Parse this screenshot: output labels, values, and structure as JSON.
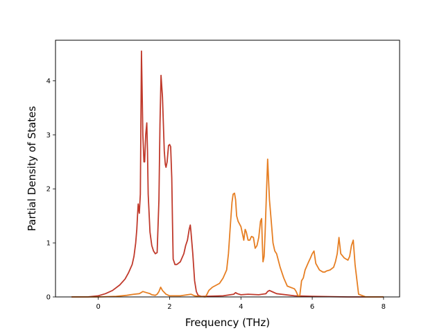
{
  "chart_data": {
    "type": "line",
    "title": "",
    "xlabel": "Frequency (THz)",
    "ylabel": "Partial Density of States",
    "xlim": [
      -1.2,
      8.45
    ],
    "ylim": [
      0,
      4.75
    ],
    "xticks": [
      0,
      2,
      4,
      6,
      8
    ],
    "yticks": [
      0,
      1,
      2,
      3,
      4
    ],
    "grid": false,
    "legend": "none",
    "series": [
      {
        "color": "#c0392b",
        "x": [
          -0.75,
          -0.3,
          0.0,
          0.2,
          0.4,
          0.6,
          0.75,
          0.85,
          0.95,
          1.0,
          1.05,
          1.08,
          1.1,
          1.12,
          1.15,
          1.18,
          1.21,
          1.23,
          1.25,
          1.28,
          1.3,
          1.33,
          1.36,
          1.38,
          1.4,
          1.45,
          1.5,
          1.55,
          1.6,
          1.65,
          1.7,
          1.73,
          1.76,
          1.8,
          1.85,
          1.88,
          1.9,
          1.93,
          1.97,
          2.0,
          2.03,
          2.06,
          2.08,
          2.1,
          2.15,
          2.2,
          2.3,
          2.4,
          2.45,
          2.5,
          2.55,
          2.58,
          2.6,
          2.65,
          2.7,
          2.75,
          2.8,
          2.9,
          3.0,
          3.5,
          3.8,
          3.85,
          3.9,
          4.0,
          4.2,
          4.5,
          4.7,
          4.75,
          4.8,
          4.9,
          5.0,
          5.5,
          6.0,
          7.0,
          8.0
        ],
        "y": [
          0.0,
          0.0,
          0.02,
          0.06,
          0.12,
          0.22,
          0.33,
          0.45,
          0.6,
          0.75,
          1.0,
          1.25,
          1.5,
          1.72,
          1.55,
          1.9,
          4.55,
          3.8,
          3.0,
          2.5,
          2.5,
          3.0,
          3.22,
          2.7,
          1.9,
          1.2,
          0.95,
          0.85,
          0.8,
          0.82,
          1.8,
          3.2,
          4.1,
          3.7,
          2.7,
          2.45,
          2.4,
          2.5,
          2.8,
          2.82,
          2.78,
          2.2,
          1.4,
          0.7,
          0.6,
          0.6,
          0.65,
          0.8,
          0.95,
          1.05,
          1.25,
          1.33,
          1.2,
          0.8,
          0.3,
          0.1,
          0.03,
          0.01,
          0.01,
          0.02,
          0.05,
          0.08,
          0.06,
          0.04,
          0.05,
          0.04,
          0.06,
          0.1,
          0.12,
          0.09,
          0.06,
          0.02,
          0.01,
          0.0,
          0.0
        ]
      },
      {
        "color": "#e67e22",
        "x": [
          -0.75,
          0.0,
          0.5,
          0.8,
          1.0,
          1.15,
          1.2,
          1.25,
          1.35,
          1.45,
          1.5,
          1.6,
          1.65,
          1.7,
          1.75,
          1.8,
          1.9,
          2.0,
          2.1,
          2.3,
          2.5,
          2.6,
          2.7,
          3.0,
          3.05,
          3.1,
          3.2,
          3.4,
          3.5,
          3.6,
          3.65,
          3.7,
          3.75,
          3.78,
          3.82,
          3.85,
          3.88,
          3.92,
          4.0,
          4.05,
          4.08,
          4.12,
          4.15,
          4.2,
          4.25,
          4.28,
          4.3,
          4.35,
          4.4,
          4.45,
          4.5,
          4.55,
          4.58,
          4.6,
          4.62,
          4.65,
          4.68,
          4.72,
          4.75,
          4.8,
          4.85,
          4.9,
          4.95,
          5.0,
          5.1,
          5.2,
          5.3,
          5.5,
          5.55,
          5.6,
          5.65,
          5.7,
          5.75,
          5.8,
          5.9,
          5.95,
          6.0,
          6.05,
          6.1,
          6.2,
          6.3,
          6.35,
          6.4,
          6.5,
          6.6,
          6.65,
          6.7,
          6.75,
          6.8,
          6.9,
          7.0,
          7.05,
          7.1,
          7.15,
          7.2,
          7.3,
          7.5,
          8.0
        ],
        "y": [
          0.0,
          0.0,
          0.01,
          0.03,
          0.05,
          0.06,
          0.08,
          0.1,
          0.08,
          0.06,
          0.04,
          0.03,
          0.05,
          0.1,
          0.18,
          0.12,
          0.05,
          0.02,
          0.02,
          0.02,
          0.04,
          0.05,
          0.02,
          0.0,
          0.05,
          0.12,
          0.18,
          0.25,
          0.35,
          0.5,
          0.8,
          1.3,
          1.75,
          1.9,
          1.92,
          1.8,
          1.5,
          1.4,
          1.3,
          1.15,
          1.05,
          1.25,
          1.2,
          1.05,
          1.05,
          1.1,
          1.12,
          1.1,
          0.9,
          0.95,
          1.1,
          1.4,
          1.45,
          1.0,
          0.65,
          0.75,
          1.2,
          2.0,
          2.55,
          1.8,
          1.4,
          1.0,
          0.85,
          0.8,
          0.55,
          0.35,
          0.2,
          0.15,
          0.1,
          0.02,
          0.02,
          0.3,
          0.35,
          0.5,
          0.65,
          0.72,
          0.8,
          0.85,
          0.62,
          0.5,
          0.46,
          0.46,
          0.48,
          0.5,
          0.55,
          0.65,
          0.8,
          1.1,
          0.8,
          0.72,
          0.68,
          0.75,
          0.95,
          1.05,
          0.6,
          0.05,
          0.0,
          0.0
        ]
      }
    ]
  }
}
